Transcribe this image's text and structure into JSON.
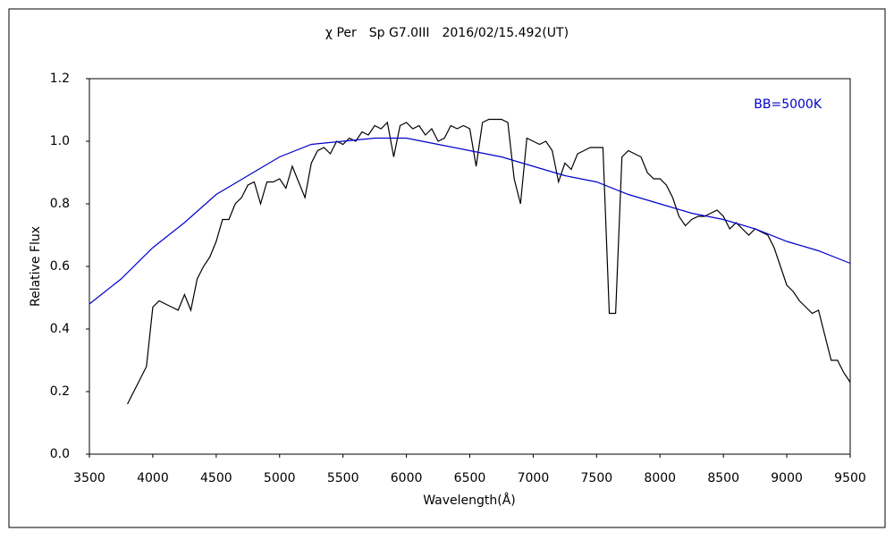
{
  "chart_data": {
    "type": "line",
    "title": "χ Per　Sp G7.0III　2016/02/15.492(UT)",
    "x_label": "Wavelength(Å)",
    "y_label": "Relative Flux",
    "xlim": [
      3500,
      9500
    ],
    "xticks": [
      3500,
      4000,
      4500,
      5000,
      5500,
      6000,
      6500,
      7000,
      7500,
      8000,
      8500,
      9000,
      9500
    ],
    "ylim": [
      0,
      1.2
    ],
    "yticks": [
      {
        "value": 0,
        "label": "0.0"
      },
      0.2,
      0.4,
      0.6,
      0.8,
      {
        "value": 1,
        "label": "1.0"
      },
      1.2
    ],
    "grid": false,
    "legend": "upper right",
    "series": [
      {
        "color": "#000000",
        "x": [
          3800,
          3850,
          3900,
          3950,
          4000,
          4050,
          4100,
          4150,
          4200,
          4250,
          4300,
          4350,
          4400,
          4450,
          4500,
          4550,
          4600,
          4650,
          4700,
          4750,
          4800,
          4850,
          4900,
          4950,
          5000,
          5050,
          5100,
          5150,
          5200,
          5250,
          5300,
          5350,
          5400,
          5450,
          5500,
          5550,
          5600,
          5650,
          5700,
          5750,
          5800,
          5850,
          5900,
          5950,
          6000,
          6050,
          6100,
          6150,
          6200,
          6250,
          6300,
          6350,
          6400,
          6450,
          6500,
          6550,
          6600,
          6650,
          6700,
          6750,
          6800,
          6850,
          6900,
          6950,
          7000,
          7050,
          7100,
          7150,
          7200,
          7250,
          7300,
          7350,
          7400,
          7450,
          7500,
          7550,
          7600,
          7650,
          7700,
          7750,
          7800,
          7850,
          7900,
          7950,
          8000,
          8050,
          8100,
          8150,
          8200,
          8250,
          8300,
          8350,
          8400,
          8450,
          8500,
          8550,
          8600,
          8650,
          8700,
          8750,
          8800,
          8850,
          8900,
          8950,
          9000,
          9050,
          9100,
          9150,
          9200,
          9250,
          9300,
          9350,
          9400,
          9450,
          9500
        ],
        "values": [
          0.16,
          0.2,
          0.24,
          0.28,
          0.47,
          0.49,
          0.48,
          0.47,
          0.46,
          0.51,
          0.46,
          0.56,
          0.6,
          0.63,
          0.68,
          0.75,
          0.75,
          0.8,
          0.82,
          0.86,
          0.87,
          0.8,
          0.87,
          0.87,
          0.88,
          0.85,
          0.92,
          0.87,
          0.82,
          0.93,
          0.97,
          0.98,
          0.96,
          1.0,
          0.99,
          1.01,
          1.0,
          1.03,
          1.02,
          1.05,
          1.04,
          1.06,
          0.95,
          1.05,
          1.06,
          1.04,
          1.05,
          1.02,
          1.04,
          1.0,
          1.01,
          1.05,
          1.04,
          1.05,
          1.04,
          0.92,
          1.06,
          1.07,
          1.07,
          1.07,
          1.06,
          0.88,
          0.8,
          1.01,
          1.0,
          0.99,
          1.0,
          0.97,
          0.87,
          0.93,
          0.91,
          0.96,
          0.97,
          0.98,
          0.98,
          0.98,
          0.45,
          0.45,
          0.95,
          0.97,
          0.96,
          0.95,
          0.9,
          0.88,
          0.88,
          0.86,
          0.82,
          0.76,
          0.73,
          0.75,
          0.76,
          0.76,
          0.77,
          0.78,
          0.76,
          0.72,
          0.74,
          0.72,
          0.7,
          0.72,
          0.71,
          0.7,
          0.66,
          0.6,
          0.54,
          0.52,
          0.49,
          0.47,
          0.45,
          0.46,
          0.38,
          0.3,
          0.3,
          0.26,
          0.23
        ]
      },
      {
        "name": "BB=5000K",
        "color": "#0000cc",
        "x": [
          3500,
          3750,
          4000,
          4250,
          4500,
          4750,
          5000,
          5250,
          5500,
          5750,
          6000,
          6250,
          6500,
          6750,
          7000,
          7250,
          7500,
          7750,
          8000,
          8250,
          8500,
          8750,
          9000,
          9250,
          9500
        ],
        "values": [
          0.48,
          0.56,
          0.66,
          0.74,
          0.83,
          0.89,
          0.95,
          0.99,
          1.0,
          1.01,
          1.01,
          0.99,
          0.97,
          0.95,
          0.92,
          0.89,
          0.87,
          0.83,
          0.8,
          0.77,
          0.75,
          0.72,
          0.68,
          0.65,
          0.61
        ]
      }
    ]
  }
}
